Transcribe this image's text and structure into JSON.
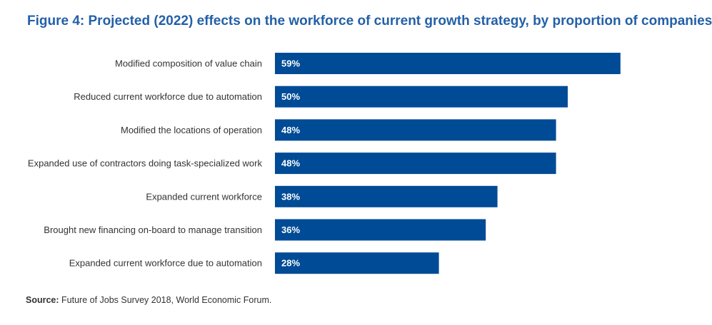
{
  "chart_data": {
    "type": "bar",
    "orientation": "horizontal",
    "title": "Figure 4: Projected (2022) effects on the workforce of current growth strategy, by proportion of companies",
    "categories": [
      "Modified composition of value chain",
      "Reduced current workforce due to automation",
      "Modified the locations of operation",
      "Expanded use of contractors doing task-specialized work",
      "Expanded current workforce",
      "Brought new financing on-board to manage transition",
      "Expanded current workforce due to automation"
    ],
    "values": [
      59,
      50,
      48,
      48,
      38,
      36,
      28
    ],
    "data_labels": [
      "59%",
      "50%",
      "48%",
      "48%",
      "38%",
      "36%",
      "28%"
    ],
    "unit": "%",
    "bar_color": "#004b96",
    "label_color": "#ffffff",
    "xlim": [
      0,
      100
    ],
    "grid": false,
    "legend": "none"
  },
  "title_color": "#2360a8",
  "source": {
    "label": "Source:",
    "text": " Future of Jobs Survey 2018, World Economic Forum."
  }
}
